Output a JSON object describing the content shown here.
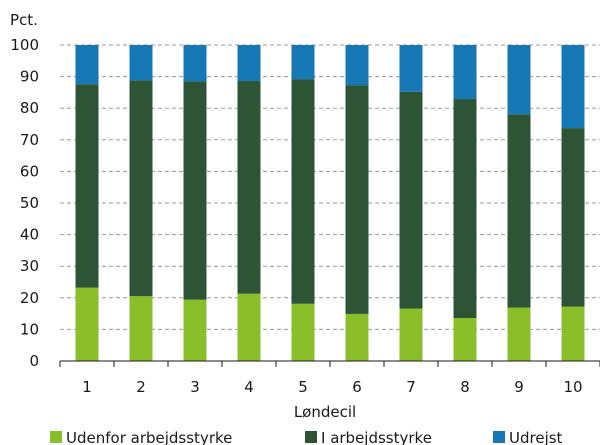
{
  "chart_data": {
    "type": "bar",
    "stacked": true,
    "ylabel": "Pct.",
    "xlabel": "Løndecil",
    "ylim": [
      0,
      100
    ],
    "yticks": [
      0,
      10,
      20,
      30,
      40,
      50,
      60,
      70,
      80,
      90,
      100
    ],
    "grid": "horizontal dashed",
    "legend_position": "bottom",
    "categories": [
      "1",
      "2",
      "3",
      "4",
      "5",
      "6",
      "7",
      "8",
      "9",
      "10"
    ],
    "series": [
      {
        "name": "Udenfor arbejdsstyrke",
        "color": "#8bbf2a",
        "values": [
          23.2,
          20.5,
          19.4,
          21.3,
          18.1,
          14.9,
          16.6,
          13.6,
          16.9,
          17.2
        ]
      },
      {
        "name": "I arbejdsstyrke",
        "color": "#2d5535",
        "values": [
          64.4,
          68.3,
          69.1,
          67.3,
          71.1,
          72.4,
          68.6,
          69.3,
          61.2,
          56.5
        ]
      },
      {
        "name": "Udrejst",
        "color": "#1679b6",
        "values": [
          12.4,
          11.2,
          11.5,
          11.4,
          10.8,
          12.7,
          14.8,
          17.1,
          21.9,
          26.3
        ]
      }
    ]
  }
}
